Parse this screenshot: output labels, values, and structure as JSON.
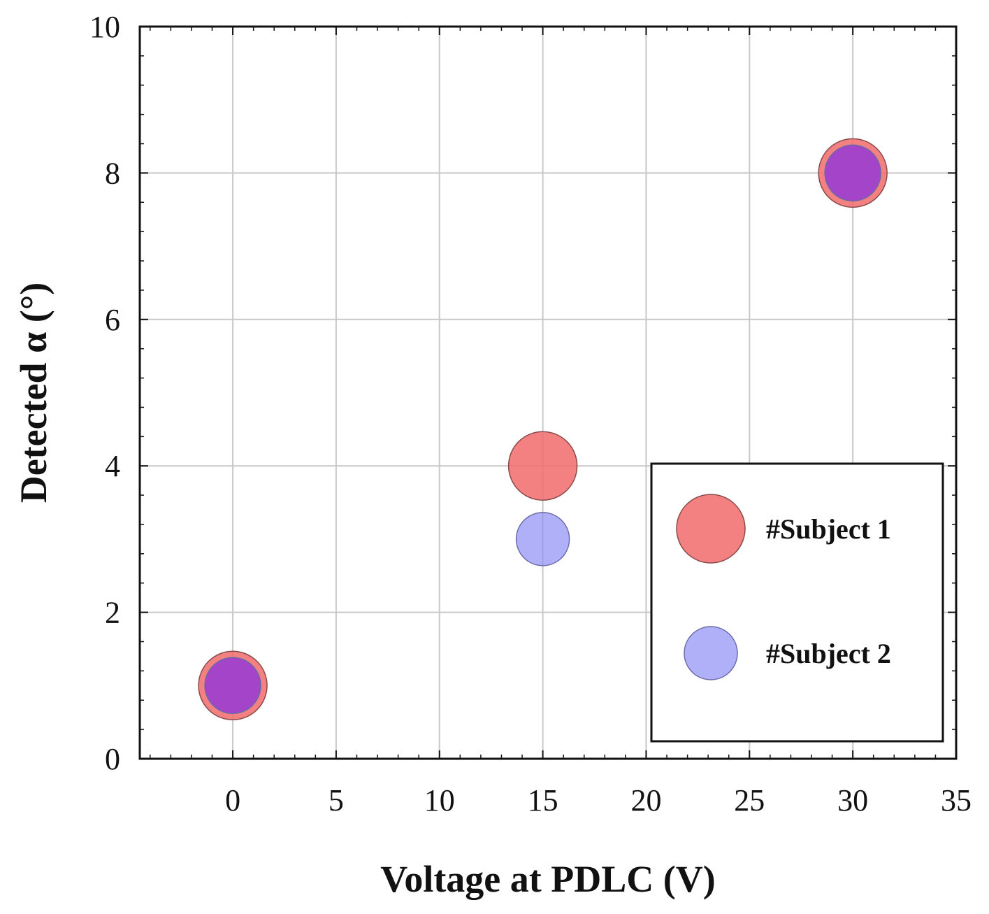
{
  "chart_data": {
    "type": "scatter",
    "xlabel": "Voltage at PDLC (V)",
    "ylabel": "Detected α (°)",
    "xlim": [
      -4.5,
      35
    ],
    "ylim": [
      0,
      10
    ],
    "xticks": [
      0,
      5,
      10,
      15,
      20,
      25,
      30,
      35
    ],
    "yticks": [
      0,
      2,
      4,
      6,
      8,
      10
    ],
    "grid": true,
    "legend_position": "bottom-right",
    "series": [
      {
        "name": "#Subject 1",
        "color": "#f26b6b",
        "edge_color": "#8a4a4a",
        "opacity": 0.85,
        "marker": "large-circle",
        "points": [
          {
            "x": 0,
            "y": 1
          },
          {
            "x": 15,
            "y": 4
          },
          {
            "x": 30,
            "y": 8
          }
        ]
      },
      {
        "name": "#Subject 2",
        "color": "#8f8ff5",
        "edge_color": "#6a6aa8",
        "opacity": 0.7,
        "marker": "small-circle",
        "points": [
          {
            "x": 0,
            "y": 1
          },
          {
            "x": 15,
            "y": 3
          },
          {
            "x": 30,
            "y": 8
          }
        ]
      }
    ],
    "overlap_color": "#9b3ed0"
  }
}
